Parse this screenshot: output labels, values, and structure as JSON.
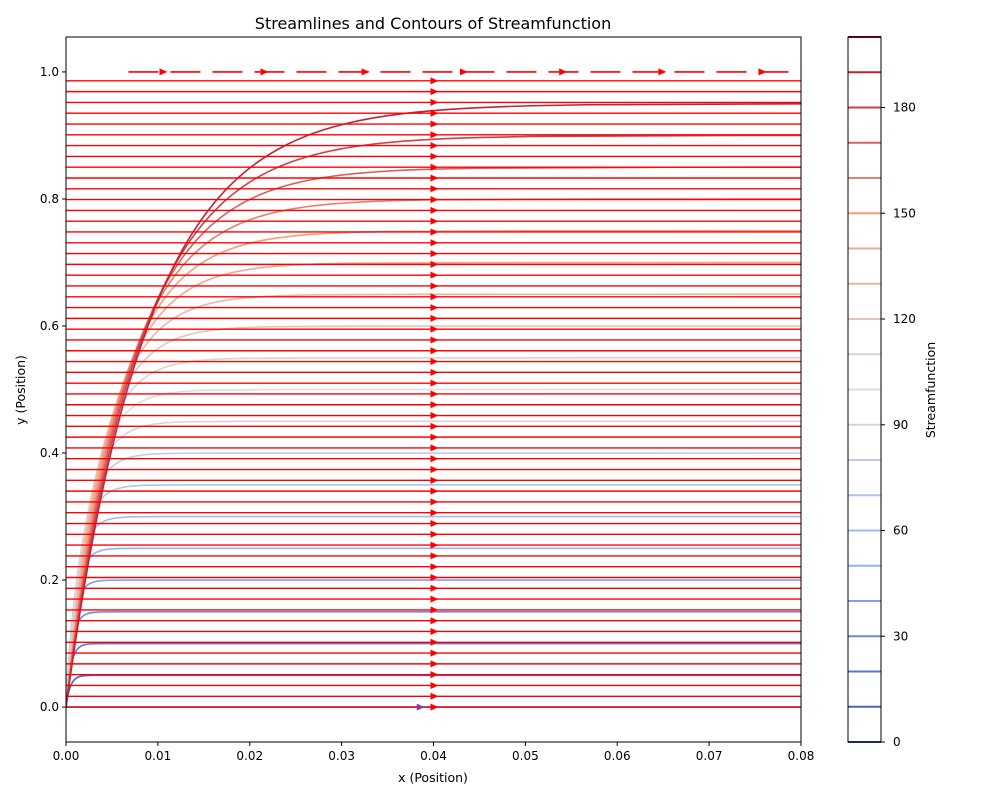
{
  "chart_data": {
    "type": "streamplot-contour",
    "title": "Streamlines and Contours of Streamfunction",
    "xlabel": "x (Position)",
    "ylabel": "y (Position)",
    "xlim": [
      0.0,
      0.08
    ],
    "ylim": [
      -0.055,
      1.055
    ],
    "x_ticks": [
      "0.00",
      "0.01",
      "0.02",
      "0.03",
      "0.04",
      "0.05",
      "0.06",
      "0.07",
      "0.08"
    ],
    "y_ticks": [
      "0.0",
      "0.2",
      "0.4",
      "0.6",
      "0.8",
      "1.0"
    ],
    "colorbar": {
      "label": "Streamfunction",
      "range": [
        0,
        200
      ],
      "ticks": [
        "0",
        "30",
        "60",
        "90",
        "120",
        "150",
        "180"
      ],
      "colormap": "coolwarm"
    },
    "contour_levels": [
      10,
      20,
      30,
      40,
      50,
      60,
      70,
      80,
      90,
      100,
      110,
      120,
      130,
      140,
      150,
      160,
      170,
      180,
      190
    ],
    "streamline_color": "#ff0000",
    "streamline_direction": "positive-x",
    "streamline_arrow_x": 0.04,
    "streamline_y_start": 0.0,
    "streamline_y_end": 1.0,
    "streamline_y_step": 0.017
  }
}
